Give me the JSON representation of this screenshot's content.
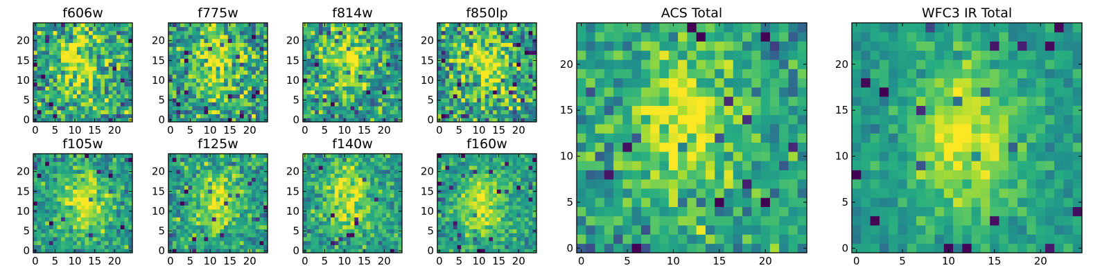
{
  "chart_data": [
    {
      "type": "heatmap",
      "title": "f606w",
      "colormap": "viridis",
      "grid_size": 25,
      "xlim": [
        -0.5,
        24.5
      ],
      "ylim": [
        -0.5,
        24.5
      ],
      "xticks": [
        0,
        5,
        10,
        15,
        20
      ],
      "yticks": [
        0,
        5,
        10,
        15,
        20
      ],
      "peak": {
        "x": 11,
        "y": 14
      },
      "noise": 0.85,
      "seed": 11
    },
    {
      "type": "heatmap",
      "title": "f775w",
      "colormap": "viridis",
      "grid_size": 25,
      "xlim": [
        -0.5,
        24.5
      ],
      "ylim": [
        -0.5,
        24.5
      ],
      "xticks": [
        0,
        5,
        10,
        15,
        20
      ],
      "yticks": [
        0,
        5,
        10,
        15,
        20
      ],
      "peak": {
        "x": 12,
        "y": 14
      },
      "noise": 0.8,
      "seed": 23
    },
    {
      "type": "heatmap",
      "title": "f814w",
      "colormap": "viridis",
      "grid_size": 25,
      "xlim": [
        -0.5,
        24.5
      ],
      "ylim": [
        -0.5,
        24.5
      ],
      "xticks": [
        0,
        5,
        10,
        15,
        20
      ],
      "yticks": [
        0,
        5,
        10,
        15,
        20
      ],
      "peak": {
        "x": 11,
        "y": 16
      },
      "noise": 0.75,
      "seed": 37
    },
    {
      "type": "heatmap",
      "title": "f850lp",
      "colormap": "viridis",
      "grid_size": 25,
      "xlim": [
        -0.5,
        24.5
      ],
      "ylim": [
        -0.5,
        24.5
      ],
      "xticks": [
        0,
        5,
        10,
        15,
        20
      ],
      "yticks": [
        0,
        5,
        10,
        15,
        20
      ],
      "peak": {
        "x": 12,
        "y": 13
      },
      "noise": 0.9,
      "seed": 41
    },
    {
      "type": "heatmap",
      "title": "f105w",
      "colormap": "viridis",
      "grid_size": 25,
      "xlim": [
        -0.5,
        24.5
      ],
      "ylim": [
        -0.5,
        24.5
      ],
      "xticks": [
        0,
        5,
        10,
        15,
        20
      ],
      "yticks": [
        0,
        5,
        10,
        15,
        20
      ],
      "peak": {
        "x": 12,
        "y": 12
      },
      "noise": 0.55,
      "seed": 53
    },
    {
      "type": "heatmap",
      "title": "f125w",
      "colormap": "viridis",
      "grid_size": 25,
      "xlim": [
        -0.5,
        24.5
      ],
      "ylim": [
        -0.5,
        24.5
      ],
      "xticks": [
        0,
        5,
        10,
        15,
        20
      ],
      "yticks": [
        0,
        5,
        10,
        15,
        20
      ],
      "peak": {
        "x": 12,
        "y": 12
      },
      "noise": 0.6,
      "seed": 67
    },
    {
      "type": "heatmap",
      "title": "f140w",
      "colormap": "viridis",
      "grid_size": 25,
      "xlim": [
        -0.5,
        24.5
      ],
      "ylim": [
        -0.5,
        24.5
      ],
      "xticks": [
        0,
        5,
        10,
        15,
        20
      ],
      "yticks": [
        0,
        5,
        10,
        15,
        20
      ],
      "peak": {
        "x": 11,
        "y": 13
      },
      "noise": 0.55,
      "seed": 71
    },
    {
      "type": "heatmap",
      "title": "f160w",
      "colormap": "viridis",
      "grid_size": 25,
      "xlim": [
        -0.5,
        24.5
      ],
      "ylim": [
        -0.5,
        24.5
      ],
      "xticks": [
        0,
        5,
        10,
        15,
        20
      ],
      "yticks": [
        0,
        5,
        10,
        15,
        20
      ],
      "peak": {
        "x": 11,
        "y": 12
      },
      "noise": 0.5,
      "seed": 83
    },
    {
      "type": "heatmap",
      "title": "ACS Total",
      "colormap": "viridis",
      "grid_size": 25,
      "xlim": [
        -0.5,
        24.5
      ],
      "ylim": [
        -0.5,
        24.5
      ],
      "xticks": [
        0,
        5,
        10,
        15,
        20
      ],
      "yticks": [
        0,
        5,
        10,
        15,
        20
      ],
      "peak": {
        "x": 11,
        "y": 14
      },
      "noise": 0.6,
      "seed": 97
    },
    {
      "type": "heatmap",
      "title": "WFC3 IR Total",
      "colormap": "viridis",
      "grid_size": 25,
      "xlim": [
        -0.5,
        24.5
      ],
      "ylim": [
        -0.5,
        24.5
      ],
      "xticks": [
        0,
        5,
        10,
        15,
        20
      ],
      "yticks": [
        0,
        5,
        10,
        15,
        20
      ],
      "peak": {
        "x": 12,
        "y": 12
      },
      "noise": 0.35,
      "seed": 101
    }
  ]
}
